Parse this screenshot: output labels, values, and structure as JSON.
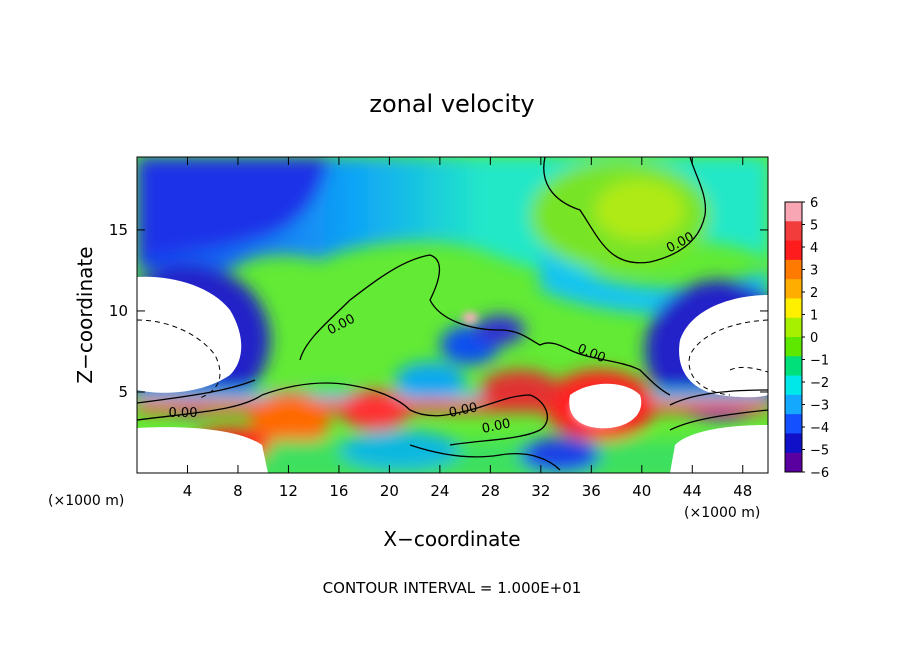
{
  "chart_data": {
    "type": "heatmap",
    "title": "zonal velocity",
    "xlabel": "X−coordinate",
    "ylabel": "Z−coordinate",
    "x_unit_label": "(×1000 m)",
    "z_unit_label": "(×1000 m)",
    "xlim": [
      0,
      50
    ],
    "ylim": [
      0,
      19.5
    ],
    "x_ticks": [
      4,
      8,
      12,
      16,
      20,
      24,
      28,
      32,
      36,
      40,
      44,
      48
    ],
    "y_ticks": [
      5,
      10,
      15
    ],
    "colorbar": {
      "ticks": [
        6,
        5,
        4,
        3,
        2,
        1,
        0,
        -1,
        -2,
        -3,
        -4,
        -5,
        -6
      ],
      "tick_labels": [
        "6",
        "5",
        "4",
        "3",
        "2",
        "1",
        "0",
        "−1",
        "−2",
        "−3",
        "−4",
        "−5",
        "−6"
      ],
      "colors": [
        "#f8a6b4",
        "#f23b3b",
        "#ff1c1c",
        "#ff7a00",
        "#ffae00",
        "#fff000",
        "#a6f000",
        "#5ee800",
        "#00e07a",
        "#00e8e8",
        "#14a8ff",
        "#1450ff",
        "#1010c8",
        "#5a00a0"
      ]
    },
    "contour_labels": [
      "0.00",
      "0.00",
      "0.00",
      "0.00",
      "0.00",
      "0.00"
    ],
    "grid": false,
    "legend": "colorbar-right"
  },
  "footer": {
    "contour_interval": "CONTOUR INTERVAL = 1.000E+01"
  }
}
